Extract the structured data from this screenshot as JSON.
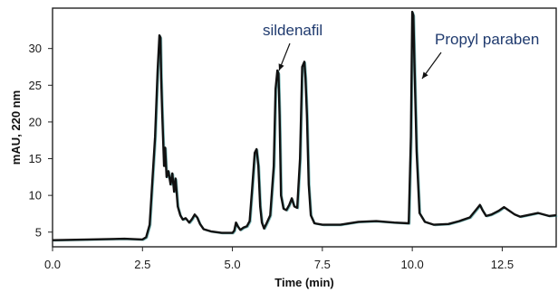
{
  "chart_data": {
    "type": "line",
    "title": "",
    "xlabel": "Time (min)",
    "ylabel": "mAU, 220 nm",
    "xlim": [
      0,
      14
    ],
    "ylim": [
      3,
      35.5
    ],
    "xticks": [
      "0.0",
      "2.5",
      "5.0",
      "7.5",
      "10.0",
      "12.5"
    ],
    "yticks": [
      "5",
      "10",
      "15",
      "20",
      "25",
      "30"
    ],
    "grid": false,
    "line_color": "#111111",
    "series": [
      {
        "name": "",
        "x": [
          0.0,
          1.0,
          2.0,
          2.5,
          2.6,
          2.7,
          2.85,
          2.92,
          2.97,
          3.0,
          3.02,
          3.05,
          3.1,
          3.13,
          3.17,
          3.22,
          3.28,
          3.33,
          3.38,
          3.42,
          3.48,
          3.55,
          3.62,
          3.7,
          3.8,
          3.88,
          3.95,
          4.02,
          4.1,
          4.2,
          4.4,
          4.7,
          5.0,
          5.05,
          5.1,
          5.15,
          5.22,
          5.3,
          5.4,
          5.48,
          5.55,
          5.62,
          5.67,
          5.72,
          5.77,
          5.82,
          5.88,
          5.95,
          6.05,
          6.15,
          6.2,
          6.25,
          6.28,
          6.31,
          6.35,
          6.42,
          6.5,
          6.58,
          6.65,
          6.72,
          6.8,
          6.88,
          6.94,
          7.0,
          7.03,
          7.07,
          7.12,
          7.18,
          7.28,
          7.5,
          8.0,
          8.5,
          9.0,
          9.5,
          9.9,
          9.96,
          10.0,
          10.03,
          10.06,
          10.12,
          10.2,
          10.35,
          10.6,
          11.0,
          11.3,
          11.6,
          11.8,
          11.88,
          11.95,
          12.05,
          12.2,
          12.4,
          12.55,
          12.7,
          12.85,
          13.0,
          13.2,
          13.5,
          13.8,
          14.0
        ],
        "y": [
          3.9,
          4.0,
          4.1,
          4.0,
          4.3,
          6.0,
          18.0,
          27.0,
          31.8,
          31.5,
          26.0,
          21.0,
          14.0,
          16.5,
          12.5,
          13.3,
          11.5,
          13.0,
          10.5,
          12.3,
          8.5,
          7.3,
          6.7,
          6.9,
          6.3,
          6.8,
          7.4,
          7.0,
          6.1,
          5.4,
          5.1,
          4.9,
          4.9,
          5.2,
          6.3,
          5.8,
          5.3,
          5.6,
          5.8,
          6.5,
          11.0,
          15.8,
          16.3,
          14.0,
          8.5,
          6.3,
          5.5,
          6.2,
          7.3,
          14.0,
          24.5,
          27.0,
          26.6,
          21.0,
          10.0,
          8.2,
          8.0,
          8.7,
          9.6,
          8.5,
          8.3,
          15.0,
          27.5,
          28.2,
          26.0,
          21.0,
          11.5,
          7.3,
          6.2,
          6.0,
          6.0,
          6.4,
          6.5,
          6.3,
          6.2,
          18.0,
          35.0,
          34.5,
          28.0,
          16.0,
          7.6,
          6.4,
          6.0,
          6.1,
          6.5,
          7.0,
          8.2,
          8.7,
          8.0,
          7.2,
          7.4,
          7.9,
          8.4,
          7.9,
          7.4,
          7.1,
          7.3,
          7.6,
          7.2,
          7.3
        ]
      }
    ],
    "annotations": [
      {
        "text": "sildenafil",
        "x": 6.25,
        "y": 27.0
      },
      {
        "text": "Propyl paraben",
        "x": 10.06,
        "y": 28.0
      }
    ]
  }
}
